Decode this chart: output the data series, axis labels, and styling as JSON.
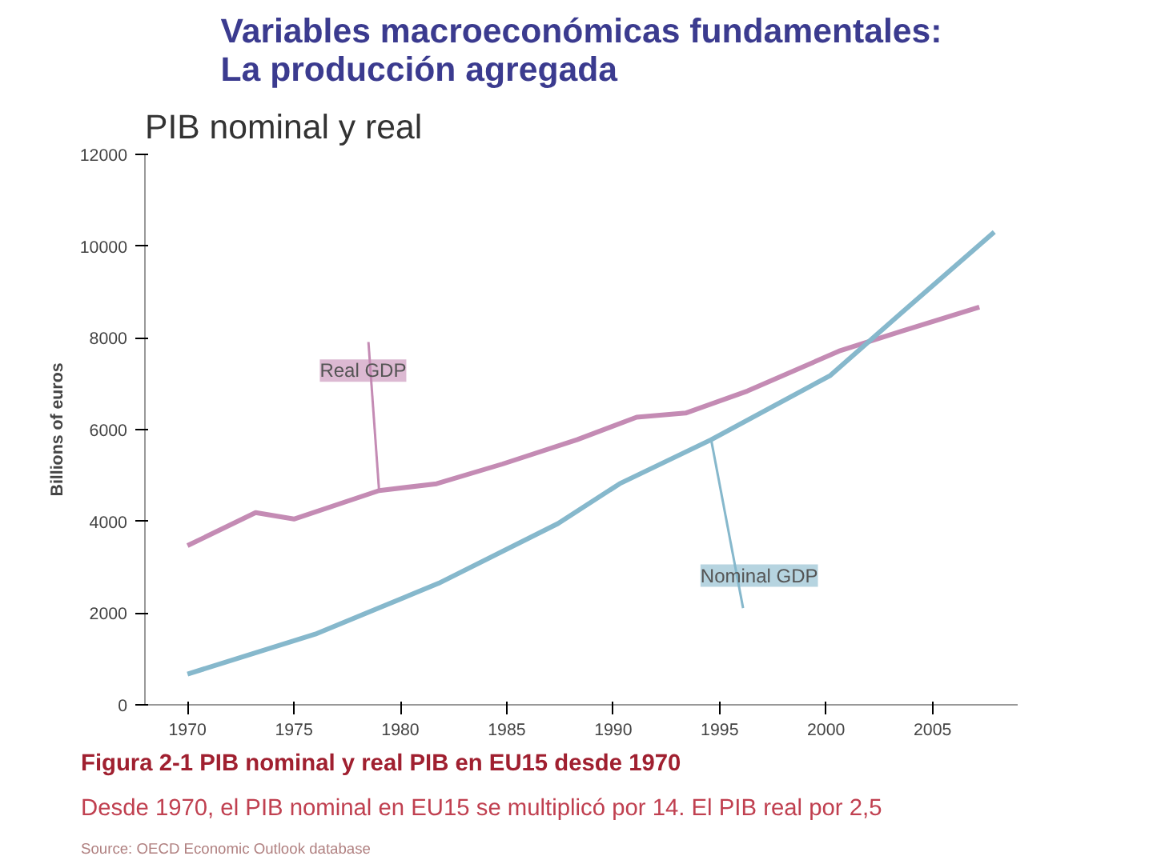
{
  "chart_data": {
    "type": "line",
    "title": "Variables macroeconómicas fundamentales:\nLa producción agregada",
    "subtitle": "PIB nominal y real",
    "ylabel": "Billions of euros",
    "xlim": [
      1968,
      2009
    ],
    "xticks": [
      1970,
      1975,
      1980,
      1985,
      1990,
      1995,
      2000,
      2005
    ],
    "ylim": [
      0,
      12000
    ],
    "yticks": [
      0,
      2000,
      4000,
      6000,
      8000,
      10000,
      12000
    ],
    "grid": false,
    "line_style": "solid",
    "series": [
      {
        "name": "Real GDP",
        "color": "#c48bb4",
        "x": [
          1970,
          1973.2,
          1975,
          1979,
          1981.7,
          1984.8,
          1988.3,
          1991.1,
          1993.4,
          1996.3,
          2000.6,
          2003.5,
          2007.2
        ],
        "values": [
          3470,
          4190,
          4050,
          4670,
          4820,
          5250,
          5780,
          6270,
          6360,
          6840,
          7710,
          8140,
          8670
        ]
      },
      {
        "name": "Nominal GDP",
        "color": "#86b8cc",
        "x": [
          1970,
          1976,
          1981.8,
          1987.4,
          1990.3,
          1994.6,
          2000.2,
          2003.5,
          2007.9
        ],
        "values": [
          670,
          1540,
          2650,
          3950,
          4820,
          5780,
          7180,
          8530,
          10310
        ]
      }
    ],
    "annotations": [
      "Figura 2-1 PIB nominal y real PIB en EU15 desde 1970",
      "Desde 1970, el PIB nominal en EU15 se multiplicó por 14. El PIB real por 2,5",
      "Source: OECD Economic Outlook database"
    ]
  }
}
